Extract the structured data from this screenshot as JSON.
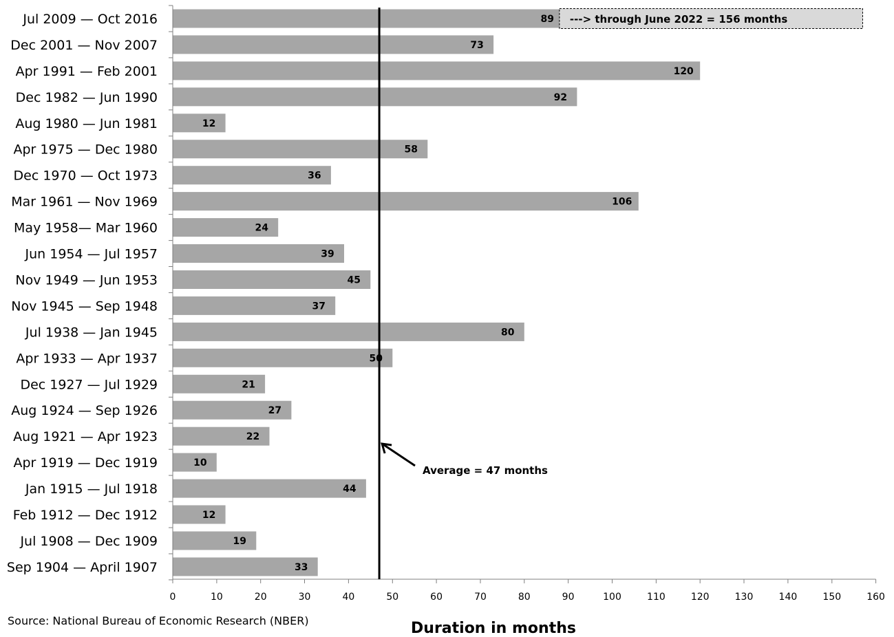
{
  "chart_data": {
    "type": "bar",
    "orientation": "horizontal",
    "categories": [
      "Jul 2009 — Oct 2016",
      "Dec 2001 — Nov 2007",
      "Apr 1991 — Feb 2001",
      "Dec 1982 — Jun 1990",
      "Aug 1980 — Jun 1981",
      "Apr 1975 — Dec 1980",
      "Dec 1970 — Oct 1973",
      "Mar 1961 — Nov 1969",
      "May 1958— Mar 1960",
      "Jun 1954 — Jul 1957",
      "Nov 1949 — Jun 1953",
      "Nov 1945 — Sep 1948",
      "Jul 1938 — Jan 1945",
      "Apr 1933 — Apr 1937",
      "Dec 1927 — Jul 1929",
      "Aug 1924 — Sep 1926",
      "Aug 1921 — Apr 1923",
      "Apr 1919 — Dec 1919",
      "Jan 1915 — Jul 1918",
      "Feb 1912 — Dec 1912",
      "Jul 1908 — Dec 1909",
      "Sep 1904 — April 1907"
    ],
    "values": [
      89,
      73,
      120,
      92,
      12,
      58,
      36,
      106,
      24,
      39,
      45,
      37,
      80,
      50,
      21,
      27,
      22,
      10,
      44,
      12,
      19,
      33
    ],
    "xlim": [
      0,
      160
    ],
    "xticks": [
      0,
      10,
      20,
      30,
      40,
      50,
      60,
      70,
      80,
      90,
      100,
      110,
      120,
      130,
      140,
      150,
      160
    ],
    "xlabel": "Duration in months",
    "ylabel": "",
    "title": "",
    "grid": false,
    "bar_color": "#a6a6a6",
    "reference_line": {
      "value": 47,
      "label": "Average = 47 months",
      "color": "#000000"
    },
    "extension_annotation": {
      "category_index": 0,
      "from": 88,
      "to": 157,
      "label": "---> through June 2022 = 156 months",
      "fill": "#d9d9d9"
    },
    "source": "Source: National Bureau of Economic Research (NBER)"
  }
}
